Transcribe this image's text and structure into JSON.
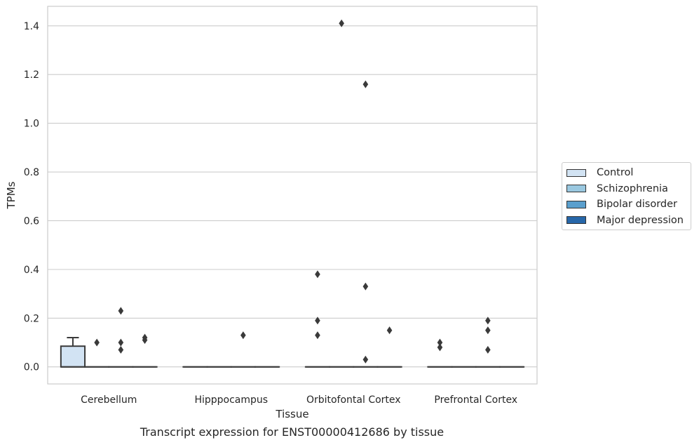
{
  "chart_data": {
    "type": "box",
    "title": "",
    "caption": "Transcript expression for ENST00000412686 by tissue",
    "xlabel": "Tissue",
    "ylabel": "TPMs",
    "ylim": [
      -0.07,
      1.48
    ],
    "yticks": [
      0.0,
      0.2,
      0.4,
      0.6,
      0.8,
      1.0,
      1.2,
      1.4
    ],
    "ytick_labels": [
      "0.0",
      "0.2",
      "0.4",
      "0.6",
      "0.8",
      "1.0",
      "1.2",
      "1.4"
    ],
    "categories": [
      "Cerebellum",
      "Hipppocampus",
      "Orbitofontal Cortex",
      "Prefrontal Cortex"
    ],
    "grid": "horizontal",
    "legend_position": "right",
    "series": [
      {
        "name": "Control",
        "color": "#d2e3f3",
        "boxes": [
          {
            "q1": 0.0,
            "median": 0.0,
            "q3": 0.085,
            "whisker_low": 0.0,
            "whisker_high": 0.12,
            "outliers": []
          },
          {
            "q1": 0.0,
            "median": 0.0,
            "q3": 0.0,
            "whisker_low": 0.0,
            "whisker_high": 0.0,
            "outliers": []
          },
          {
            "q1": 0.0,
            "median": 0.0,
            "q3": 0.0,
            "whisker_low": 0.0,
            "whisker_high": 0.0,
            "outliers": [
              0.38,
              0.19,
              0.13
            ]
          },
          {
            "q1": 0.0,
            "median": 0.0,
            "q3": 0.0,
            "whisker_low": 0.0,
            "whisker_high": 0.0,
            "outliers": [
              0.1,
              0.08
            ]
          }
        ]
      },
      {
        "name": "Schizophrenia",
        "color": "#9ac8e0",
        "boxes": [
          {
            "q1": 0.0,
            "median": 0.0,
            "q3": 0.0,
            "whisker_low": 0.0,
            "whisker_high": 0.0,
            "outliers": [
              0.1
            ]
          },
          {
            "q1": 0.0,
            "median": 0.0,
            "q3": 0.0,
            "whisker_low": 0.0,
            "whisker_high": 0.0,
            "outliers": []
          },
          {
            "q1": 0.0,
            "median": 0.0,
            "q3": 0.0,
            "whisker_low": 0.0,
            "whisker_high": 0.0,
            "outliers": [
              1.41
            ]
          },
          {
            "q1": 0.0,
            "median": 0.0,
            "q3": 0.0,
            "whisker_low": 0.0,
            "whisker_high": 0.0,
            "outliers": []
          }
        ]
      },
      {
        "name": "Bipolar disorder",
        "color": "#5a9fcd",
        "boxes": [
          {
            "q1": 0.0,
            "median": 0.0,
            "q3": 0.0,
            "whisker_low": 0.0,
            "whisker_high": 0.0,
            "outliers": [
              0.23,
              0.1,
              0.07
            ]
          },
          {
            "q1": 0.0,
            "median": 0.0,
            "q3": 0.0,
            "whisker_low": 0.0,
            "whisker_high": 0.0,
            "outliers": [
              0.13
            ]
          },
          {
            "q1": 0.0,
            "median": 0.0,
            "q3": 0.0,
            "whisker_low": 0.0,
            "whisker_high": 0.0,
            "outliers": [
              1.16,
              0.33,
              0.03
            ]
          },
          {
            "q1": 0.0,
            "median": 0.0,
            "q3": 0.0,
            "whisker_low": 0.0,
            "whisker_high": 0.0,
            "outliers": [
              0.19,
              0.15,
              0.07
            ]
          }
        ]
      },
      {
        "name": "Major depression",
        "color": "#2767a9",
        "boxes": [
          {
            "q1": 0.0,
            "median": 0.0,
            "q3": 0.0,
            "whisker_low": 0.0,
            "whisker_high": 0.0,
            "outliers": [
              0.12,
              0.11
            ]
          },
          {
            "q1": 0.0,
            "median": 0.0,
            "q3": 0.0,
            "whisker_low": 0.0,
            "whisker_high": 0.0,
            "outliers": []
          },
          {
            "q1": 0.0,
            "median": 0.0,
            "q3": 0.0,
            "whisker_low": 0.0,
            "whisker_high": 0.0,
            "outliers": [
              0.15
            ]
          },
          {
            "q1": 0.0,
            "median": 0.0,
            "q3": 0.0,
            "whisker_low": 0.0,
            "whisker_high": 0.0,
            "outliers": []
          }
        ]
      }
    ]
  }
}
